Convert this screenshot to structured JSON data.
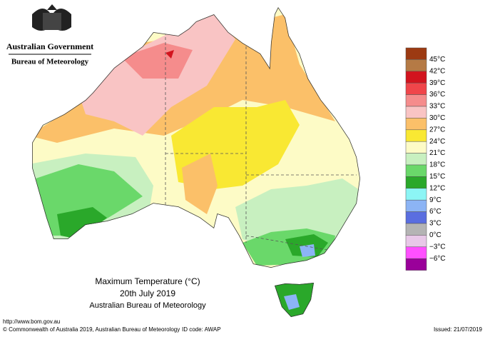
{
  "header": {
    "title": "Australian Government",
    "subtitle": "Bureau of Meteorology"
  },
  "map": {
    "title": "Maximum Temperature (°C)",
    "date": "20th July 2019",
    "source": "Australian Bureau of Meteorology"
  },
  "legend": {
    "labels": [
      "45°C",
      "42°C",
      "39°C",
      "36°C",
      "33°C",
      "30°C",
      "27°C",
      "24°C",
      "21°C",
      "18°C",
      "15°C",
      "12°C",
      "9°C",
      "6°C",
      "3°C",
      "0°C",
      "−3°C",
      "−6°C"
    ],
    "colors": [
      "#9c3a12",
      "#b57a45",
      "#d2141e",
      "#f0454a",
      "#f58c8c",
      "#f9c4c4",
      "#fbc069",
      "#f9e833",
      "#fdfbc6",
      "#c8f0c0",
      "#6ad86a",
      "#2aa82a",
      "#8cf5f5",
      "#8cb4f5",
      "#5a6ee0",
      "#b4b4b4",
      "#e8c8e8",
      "#ff50ff",
      "#9a009a"
    ]
  },
  "footer": {
    "url": "http://www.bom.gov.au",
    "copyright": "© Commonwealth of Australia 2019, Australian Bureau of Meteorology",
    "id_code": "ID code: AWAP",
    "issued": "Issued: 21/07/2019"
  }
}
